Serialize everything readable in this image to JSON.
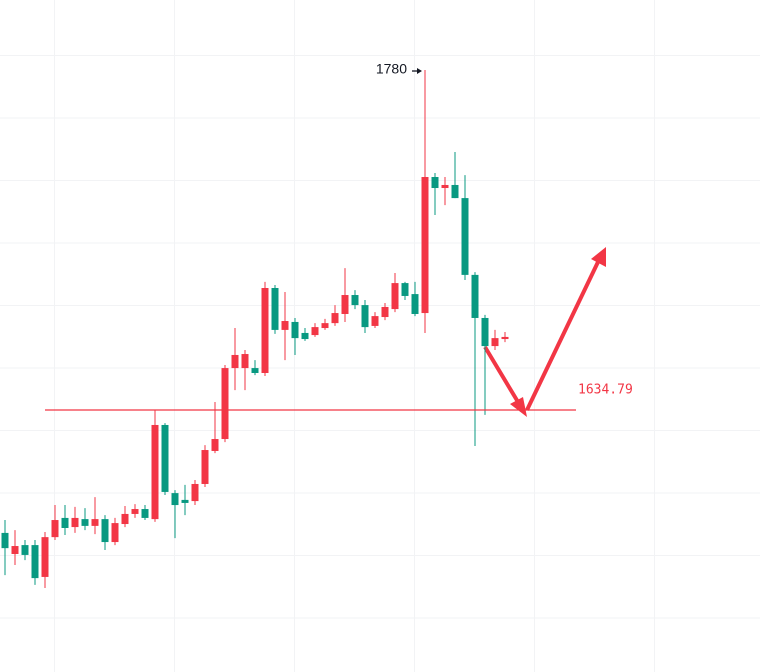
{
  "chart_data": {
    "type": "candlestick",
    "ylim": [
      1522.9,
      1809.9
    ],
    "up_color": "#f23645",
    "down_color": "#089981",
    "open": [
      1582.3,
      1573.3,
      1577.1,
      1577.1,
      1563.5,
      1580.5,
      1588.7,
      1584.8,
      1588.2,
      1585.3,
      1588.2,
      1578.4,
      1586.1,
      1590.4,
      1592.5,
      1588.2,
      1628.4,
      1599.3,
      1596.4,
      1595.9,
      1603.2,
      1617.3,
      1622.4,
      1652.7,
      1652.7,
      1652.7,
      1650.6,
      1686.9,
      1669.0,
      1672.4,
      1667.7,
      1666.8,
      1669.8,
      1671.9,
      1675.8,
      1683.9,
      1679.6,
      1670.7,
      1674.5,
      1677.9,
      1689.0,
      1684.3,
      1676.2,
      1734.3,
      1729.6,
      1730.9,
      1725.3,
      1692.5,
      1674.1,
      1662.1,
      1665.1
    ],
    "high": [
      1587.8,
      1583.5,
      1579.3,
      1579.3,
      1582.7,
      1594.2,
      1594.2,
      1593.4,
      1592.9,
      1597.6,
      1589.9,
      1588.7,
      1593.8,
      1594.6,
      1594.2,
      1634.8,
      1629.2,
      1600.6,
      1602.8,
      1604.9,
      1619.8,
      1638.2,
      1654.0,
      1669.8,
      1660.4,
      1656.1,
      1689.5,
      1688.2,
      1685.2,
      1674.1,
      1669.8,
      1671.9,
      1673.7,
      1679.6,
      1695.4,
      1686.0,
      1681.8,
      1676.6,
      1680.5,
      1693.3,
      1689.5,
      1689.5,
      1780.0,
      1736.0,
      1734.3,
      1745.0,
      1735.1,
      1693.7,
      1675.4,
      1669.0,
      1668.1
    ],
    "low": [
      1564.3,
      1568.6,
      1570.7,
      1560.1,
      1558.8,
      1579.3,
      1581.4,
      1582.3,
      1583.5,
      1581.8,
      1575.0,
      1577.1,
      1584.8,
      1588.7,
      1587.8,
      1587.0,
      1598.5,
      1580.1,
      1589.9,
      1594.2,
      1601.9,
      1616.4,
      1621.1,
      1643.3,
      1643.3,
      1649.7,
      1649.3,
      1667.3,
      1656.1,
      1658.3,
      1664.3,
      1666.0,
      1669.0,
      1670.7,
      1672.4,
      1677.9,
      1667.7,
      1669.8,
      1673.2,
      1676.6,
      1681.8,
      1674.9,
      1667.7,
      1718.1,
      1722.3,
      1725.3,
      1690.3,
      1619.4,
      1632.7,
      1660.4,
      1663.8
    ],
    "close": [
      1575.8,
      1576.7,
      1572.9,
      1563.0,
      1580.5,
      1587.8,
      1584.4,
      1588.7,
      1585.3,
      1588.2,
      1578.4,
      1586.5,
      1590.4,
      1592.5,
      1588.7,
      1628.4,
      1599.8,
      1594.2,
      1595.1,
      1603.2,
      1617.7,
      1622.4,
      1652.7,
      1658.3,
      1658.7,
      1650.6,
      1686.9,
      1669.0,
      1672.8,
      1665.5,
      1665.1,
      1670.2,
      1671.9,
      1676.2,
      1683.9,
      1679.6,
      1670.2,
      1674.9,
      1678.8,
      1689.0,
      1683.5,
      1675.8,
      1734.3,
      1729.6,
      1730.9,
      1725.3,
      1692.5,
      1674.1,
      1662.1,
      1665.5,
      1666.0
    ],
    "high_annotation": 1780,
    "level": 1634.79,
    "level_color": "#f23645"
  }
}
